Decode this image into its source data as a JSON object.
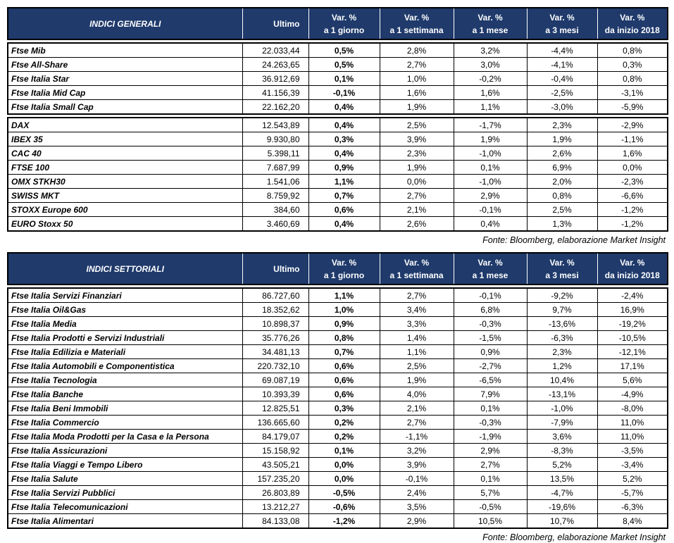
{
  "tables": [
    {
      "headers": [
        [
          "INDICI GENERALI"
        ],
        [
          "Ultimo"
        ],
        [
          "Var. %",
          "a 1 giorno"
        ],
        [
          "Var. %",
          "a 1 settimana"
        ],
        [
          "Var. %",
          "a 1 mese"
        ],
        [
          "Var. %",
          "a 3 mesi"
        ],
        [
          "Var. %",
          "da inizio 2018"
        ]
      ],
      "groups": [
        [
          [
            "Ftse Mib",
            "22.033,44",
            "0,5%",
            "2,8%",
            "3,2%",
            "-4,4%",
            "0,8%"
          ],
          [
            "Ftse All-Share",
            "24.263,65",
            "0,5%",
            "2,7%",
            "3,0%",
            "-4,1%",
            "0,3%"
          ],
          [
            "Ftse Italia Star",
            "36.912,69",
            "0,1%",
            "1,0%",
            "-0,2%",
            "-0,4%",
            "0,8%"
          ],
          [
            "Ftse Italia Mid Cap",
            "41.156,39",
            "-0,1%",
            "1,6%",
            "1,6%",
            "-2,5%",
            "-3,1%"
          ],
          [
            "Ftse Italia Small Cap",
            "22.162,20",
            "0,4%",
            "1,9%",
            "1,1%",
            "-3,0%",
            "-5,9%"
          ]
        ],
        [
          [
            "DAX",
            "12.543,89",
            "0,4%",
            "2,5%",
            "-1,7%",
            "2,3%",
            "-2,9%"
          ],
          [
            "IBEX 35",
            "9.930,80",
            "0,3%",
            "3,9%",
            "1,9%",
            "1,9%",
            "-1,1%"
          ],
          [
            "CAC 40",
            "5.398,11",
            "0,4%",
            "2,3%",
            "-1,0%",
            "2,6%",
            "1,6%"
          ],
          [
            "FTSE 100",
            "7.687,99",
            "0,9%",
            "1,9%",
            "0,1%",
            "6,9%",
            "0,0%"
          ],
          [
            "OMX STKH30",
            "1.541,06",
            "1,1%",
            "0,0%",
            "-1,0%",
            "2,0%",
            "-2,3%"
          ],
          [
            "SWISS MKT",
            "8.759,92",
            "0,7%",
            "2,7%",
            "2,9%",
            "0,8%",
            "-6,6%"
          ],
          [
            "STOXX Europe 600",
            "384,60",
            "0,6%",
            "2,1%",
            "-0,1%",
            "2,5%",
            "-1,2%"
          ],
          [
            "EURO Stoxx 50",
            "3.460,69",
            "0,4%",
            "2,6%",
            "0,4%",
            "1,3%",
            "-1,2%"
          ]
        ]
      ],
      "source": "Fonte: Bloomberg, elaborazione Market Insight"
    },
    {
      "headers": [
        [
          "INDICI SETTORIALI"
        ],
        [
          "Ultimo"
        ],
        [
          "Var. %",
          "a 1 giorno"
        ],
        [
          "Var. %",
          "a 1 settimana"
        ],
        [
          "Var. %",
          "a 1 mese"
        ],
        [
          "Var. %",
          "a 3 mesi"
        ],
        [
          "Var. %",
          "da inizio 2018"
        ]
      ],
      "groups": [
        [
          [
            "Ftse Italia Servizi Finanziari",
            "86.727,60",
            "1,1%",
            "2,7%",
            "-0,1%",
            "-9,2%",
            "-2,4%"
          ],
          [
            "Ftse Italia Oil&Gas",
            "18.352,62",
            "1,0%",
            "3,4%",
            "6,8%",
            "9,7%",
            "16,9%"
          ],
          [
            "Ftse Italia Media",
            "10.898,37",
            "0,9%",
            "3,3%",
            "-0,3%",
            "-13,6%",
            "-19,2%"
          ],
          [
            "Ftse Italia Prodotti e Servizi Industriali",
            "35.776,26",
            "0,8%",
            "1,4%",
            "-1,5%",
            "-6,3%",
            "-10,5%"
          ],
          [
            "Ftse Italia Edilizia e Materiali",
            "34.481,13",
            "0,7%",
            "1,1%",
            "0,9%",
            "2,3%",
            "-12,1%"
          ],
          [
            "Ftse Italia Automobili e Componentistica",
            "220.732,10",
            "0,6%",
            "2,5%",
            "-2,7%",
            "1,2%",
            "17,1%"
          ],
          [
            "Ftse Italia Tecnologia",
            "69.087,19",
            "0,6%",
            "1,9%",
            "-6,5%",
            "10,4%",
            "5,6%"
          ],
          [
            "Ftse Italia Banche",
            "10.393,39",
            "0,6%",
            "4,0%",
            "7,9%",
            "-13,1%",
            "-4,9%"
          ],
          [
            "Ftse Italia Beni Immobili",
            "12.825,51",
            "0,3%",
            "2,1%",
            "0,1%",
            "-1,0%",
            "-8,0%"
          ],
          [
            "Ftse Italia Commercio",
            "136.665,60",
            "0,2%",
            "2,7%",
            "-0,3%",
            "-7,9%",
            "11,0%"
          ],
          [
            "Ftse Italia Moda Prodotti per la Casa e la Persona",
            "84.179,07",
            "0,2%",
            "-1,1%",
            "-1,9%",
            "3,6%",
            "11,0%"
          ],
          [
            "Ftse Italia Assicurazioni",
            "15.158,92",
            "0,1%",
            "3,2%",
            "2,9%",
            "-8,3%",
            "-3,5%"
          ],
          [
            "Ftse Italia Viaggi e Tempo Libero",
            "43.505,21",
            "0,0%",
            "3,9%",
            "2,7%",
            "5,2%",
            "-3,4%"
          ],
          [
            "Ftse Italia Salute",
            "157.235,20",
            "0,0%",
            "-0,1%",
            "0,1%",
            "13,5%",
            "5,2%"
          ],
          [
            "Ftse Italia Servizi Pubblici",
            "26.803,89",
            "-0,5%",
            "2,4%",
            "5,7%",
            "-4,7%",
            "-5,7%"
          ],
          [
            "Ftse Italia Telecomunicazioni",
            "13.212,27",
            "-0,6%",
            "3,5%",
            "-0,5%",
            "-19,6%",
            "-6,3%"
          ],
          [
            "Ftse Italia Alimentari",
            "84.133,08",
            "-1,2%",
            "2,9%",
            "10,5%",
            "10,7%",
            "8,4%"
          ]
        ]
      ],
      "source": "Fonte: Bloomberg, elaborazione Market Insight"
    }
  ]
}
